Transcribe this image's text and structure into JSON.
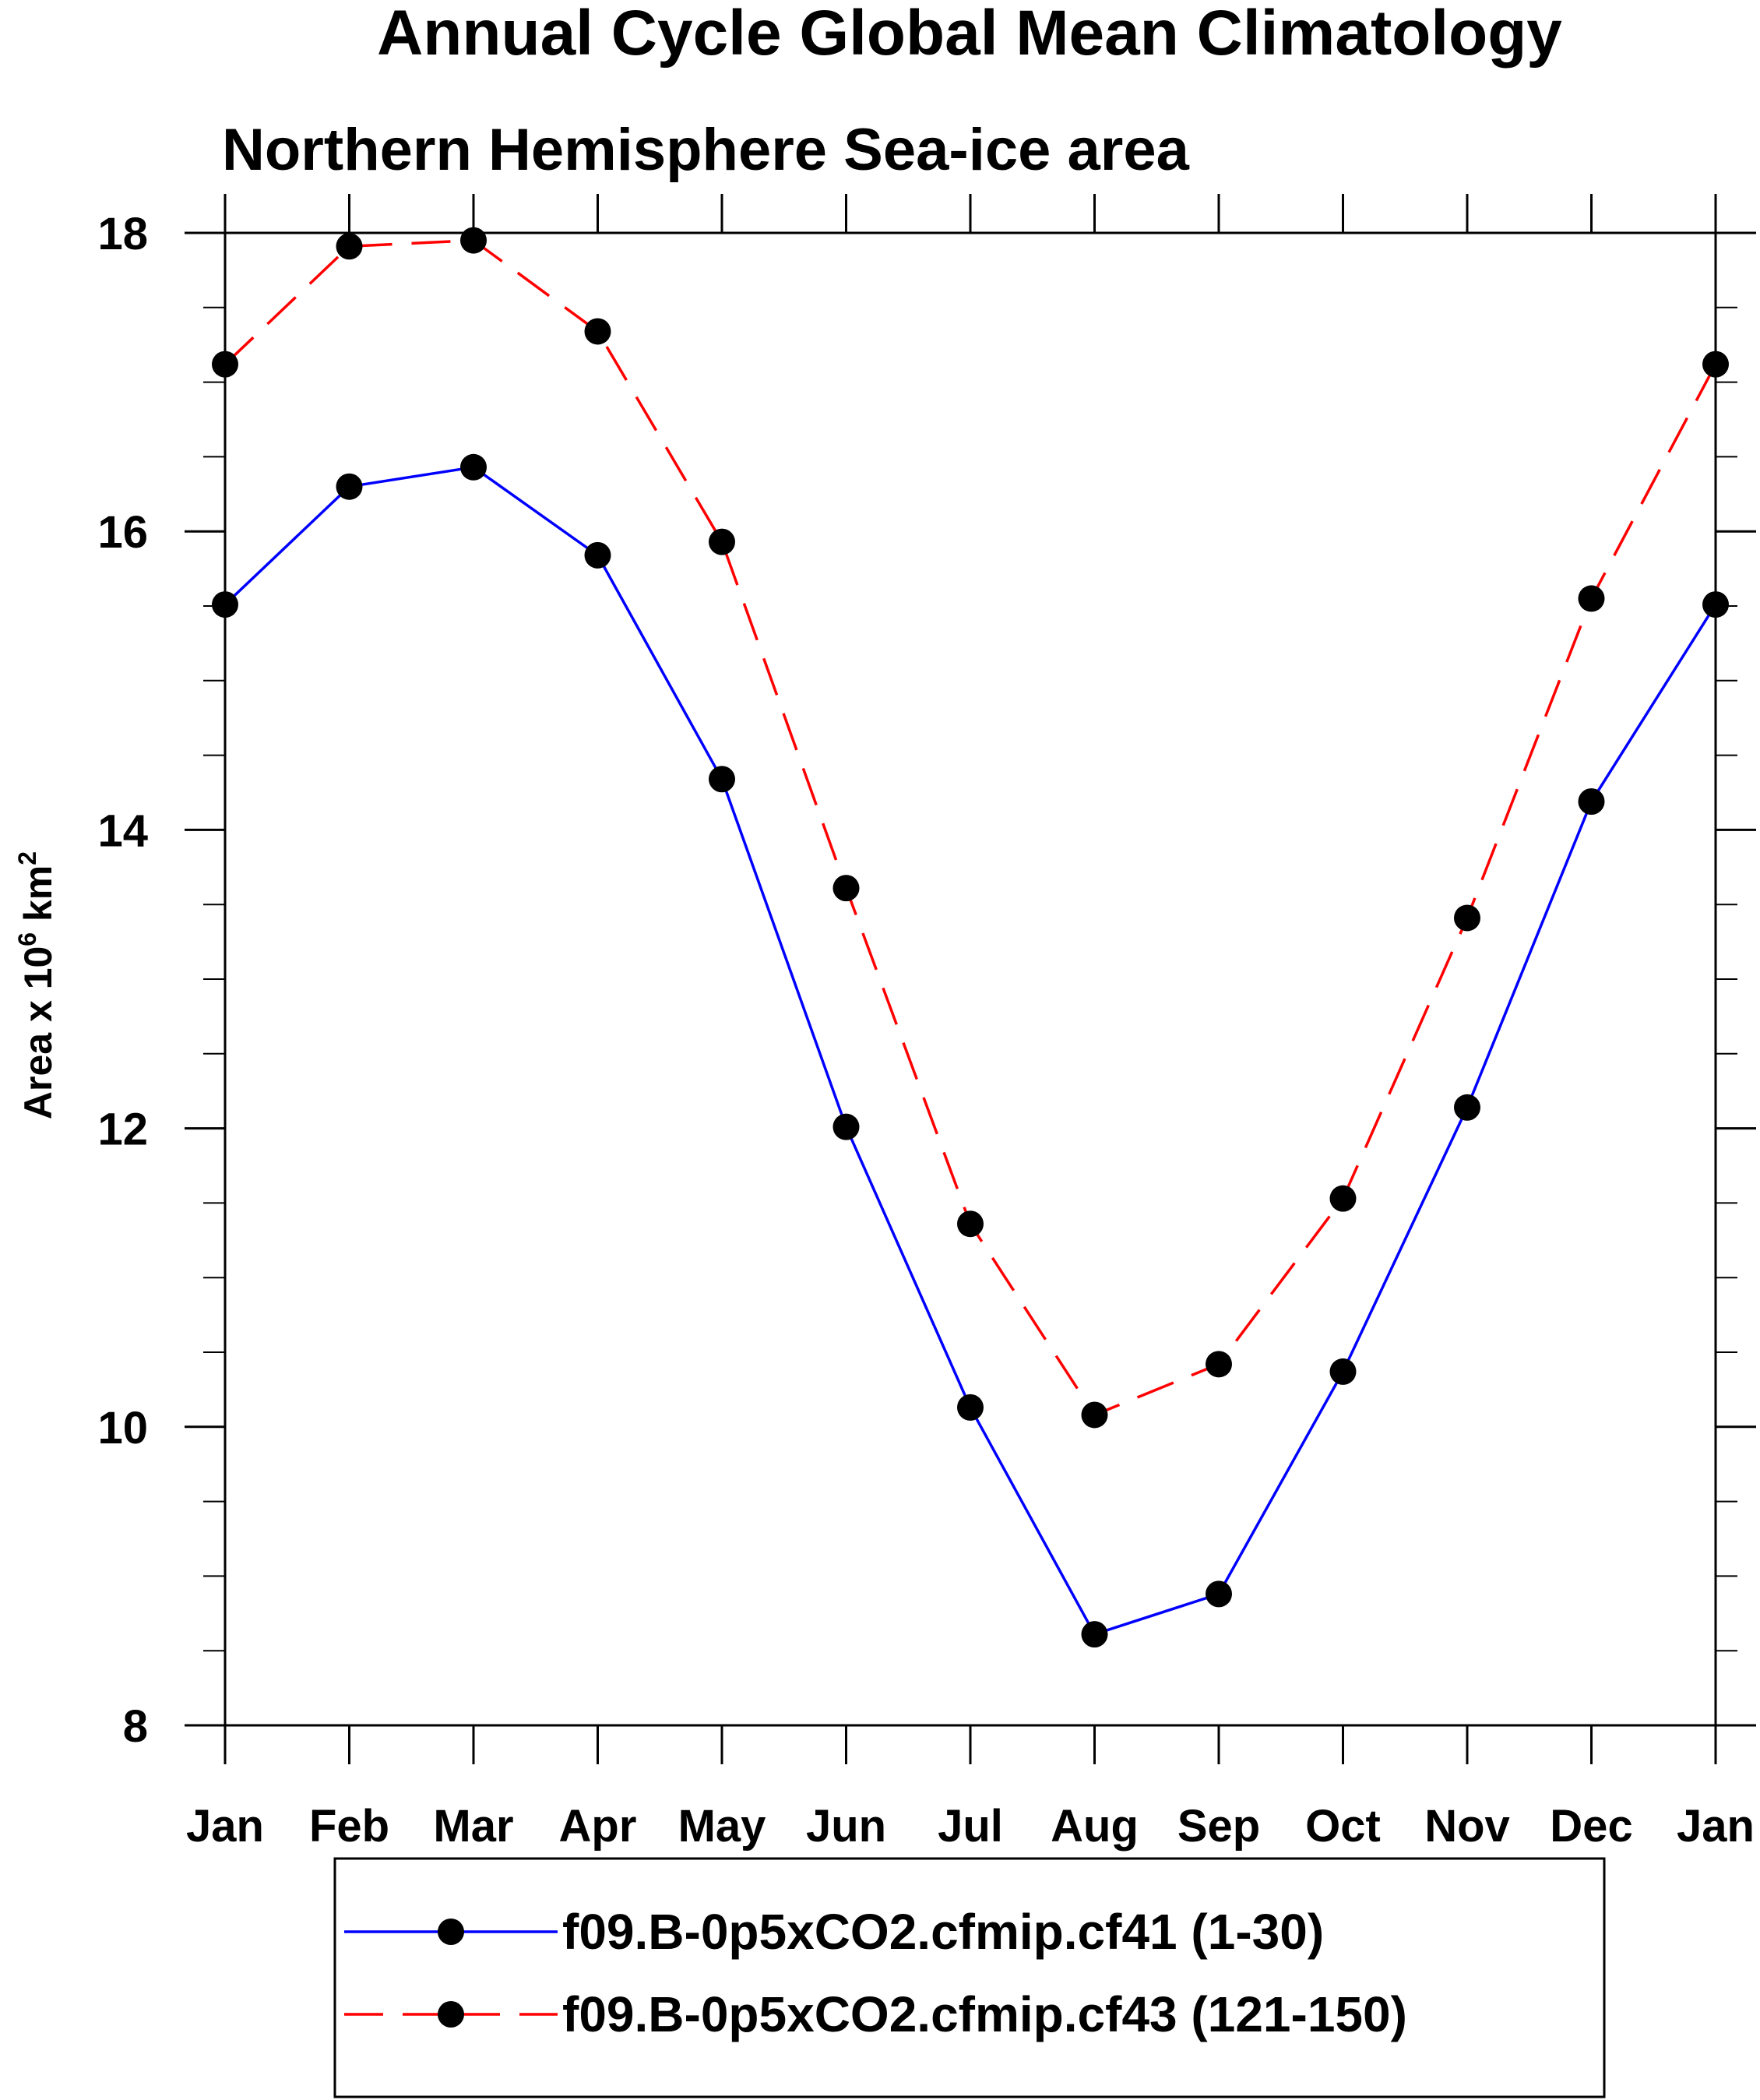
{
  "chart_data": {
    "type": "line",
    "title": "Annual Cycle Global Mean Climatology",
    "subtitle": "Northern Hemisphere Sea-ice area",
    "xlabel": "",
    "ylabel": {
      "text": "Area x 10",
      "exp1": "6",
      "unit": " km",
      "exp2": "2"
    },
    "categories": [
      "Jan",
      "Feb",
      "Mar",
      "Apr",
      "May",
      "Jun",
      "Jul",
      "Aug",
      "Sep",
      "Oct",
      "Nov",
      "Dec",
      "Jan"
    ],
    "ylim": [
      8,
      18
    ],
    "yticks": [
      8,
      10,
      12,
      14,
      16,
      18
    ],
    "yminor_step": 0.5,
    "grid": false,
    "legend_position": "bottom",
    "series": [
      {
        "name": "f09.B-0p5xCO2.cfmip.cf41 (1-30)",
        "color": "#0000ff",
        "line_style": "solid",
        "marker": "filled-circle",
        "values": [
          15.51,
          16.3,
          16.43,
          15.84,
          14.34,
          12.01,
          10.13,
          8.61,
          8.88,
          10.37,
          12.14,
          14.19,
          15.51
        ]
      },
      {
        "name": "f09.B-0p5xCO2.cfmip.cf43 (121-150)",
        "color": "#ff0000",
        "line_style": "dashed",
        "marker": "filled-circle",
        "values": [
          17.12,
          17.91,
          17.95,
          17.34,
          15.93,
          13.61,
          11.36,
          10.08,
          10.42,
          11.53,
          13.41,
          15.55,
          17.12
        ]
      }
    ]
  }
}
